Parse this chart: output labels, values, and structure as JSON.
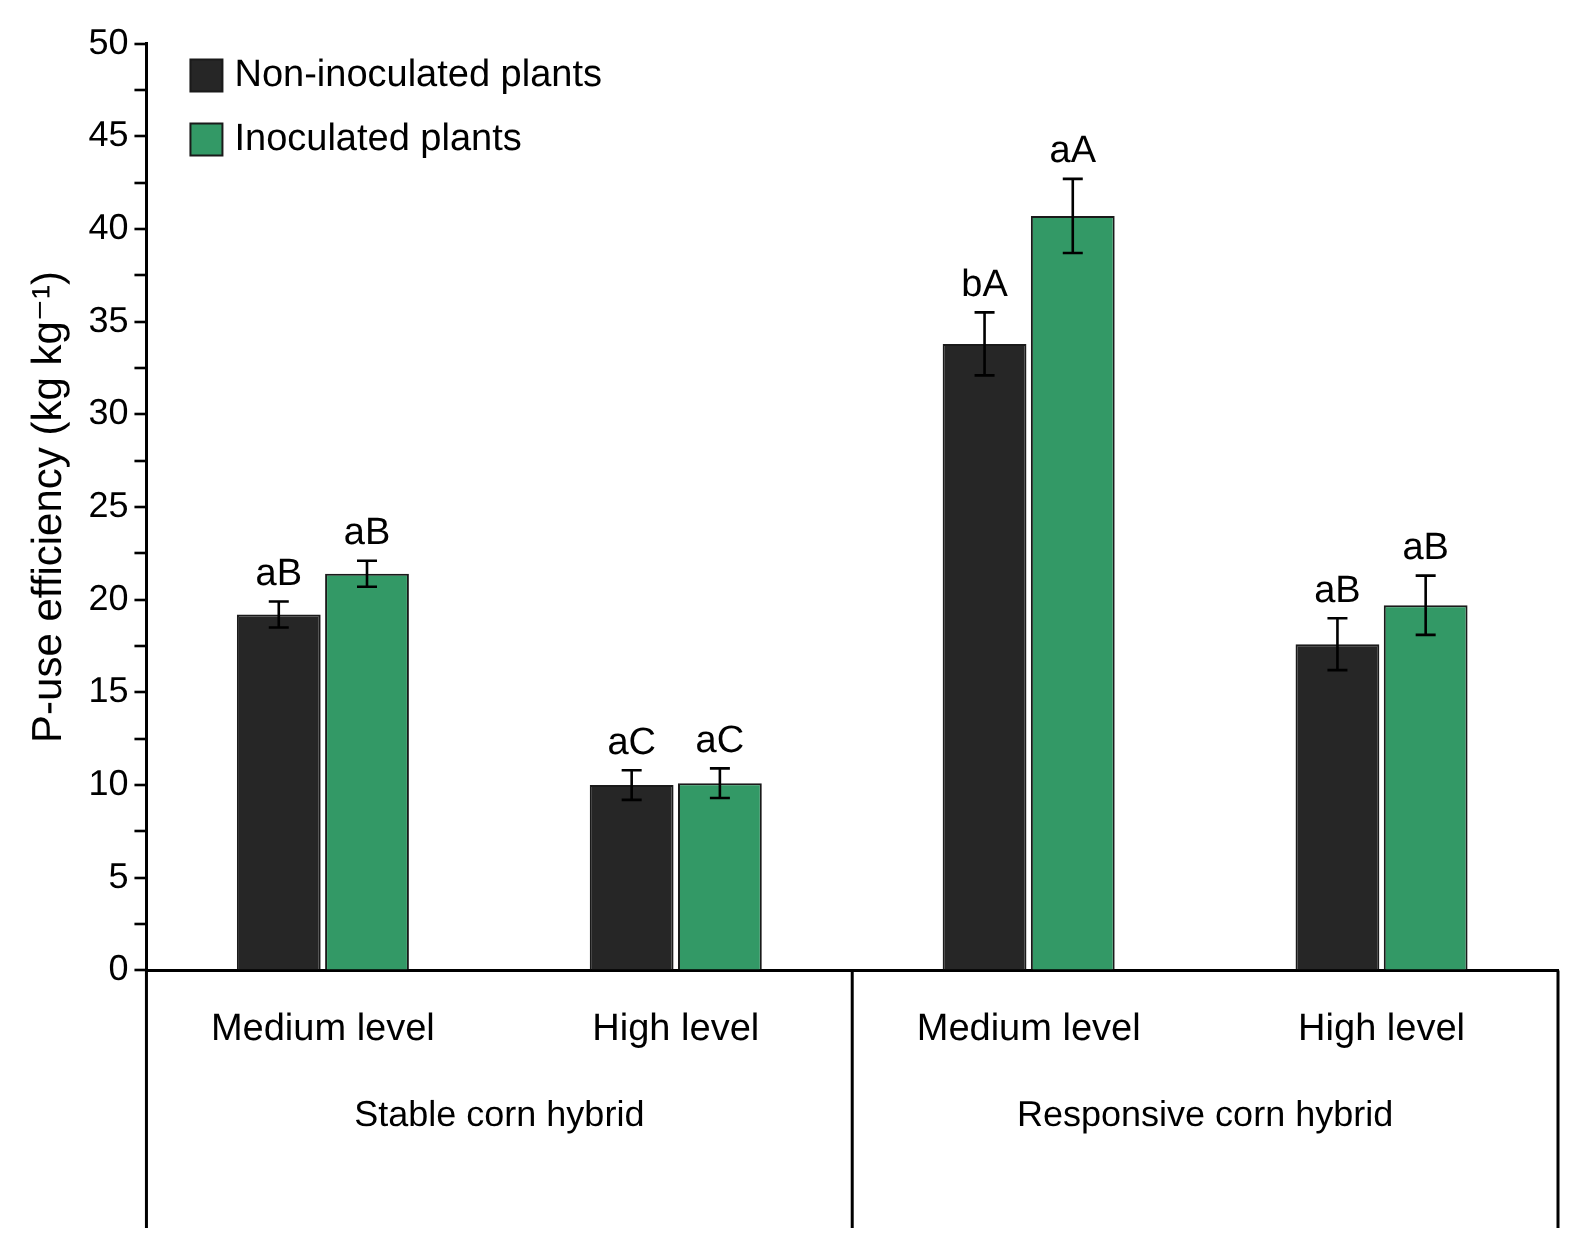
{
  "chart_data": {
    "type": "bar",
    "ylabel": "P-use efficiency (kg kg⁻¹)",
    "categories": [
      "Medium level",
      "High level",
      "Medium level",
      "High level"
    ],
    "annotations": [
      "Stable corn hybrid",
      "Responsive corn hybrid"
    ],
    "series": [
      {
        "name": "Non-inoculated plants",
        "color": "#262626",
        "values": [
          19.2,
          10.0,
          33.8,
          17.6
        ],
        "errors": [
          0.7,
          0.8,
          1.7,
          1.4
        ],
        "value_labels": [
          "aB",
          "aC",
          "bA",
          "aB"
        ]
      },
      {
        "name": "Inoculated plants",
        "color": "#339966",
        "values": [
          21.4,
          10.1,
          40.7,
          19.7
        ],
        "errors": [
          0.7,
          0.8,
          2.0,
          1.6
        ],
        "value_labels": [
          "aB",
          "aC",
          "aA",
          "aB"
        ]
      }
    ],
    "ylim": [
      0,
      50
    ],
    "yticks": [
      0,
      {
        "value": 2.5,
        "label": null
      },
      5,
      {
        "value": 7.5,
        "label": null
      },
      10,
      {
        "value": 12.5,
        "label": null
      },
      15,
      {
        "value": 17.5,
        "label": null
      },
      20,
      {
        "value": 22.5,
        "label": null
      },
      25,
      {
        "value": 27.5,
        "label": null
      },
      30,
      {
        "value": 32.5,
        "label": null
      },
      35,
      {
        "value": 37.5,
        "label": null
      },
      40,
      {
        "value": 42.5,
        "label": null
      },
      45,
      {
        "value": 47.5,
        "label": null
      },
      50
    ],
    "grid": false,
    "legend": "top left"
  }
}
